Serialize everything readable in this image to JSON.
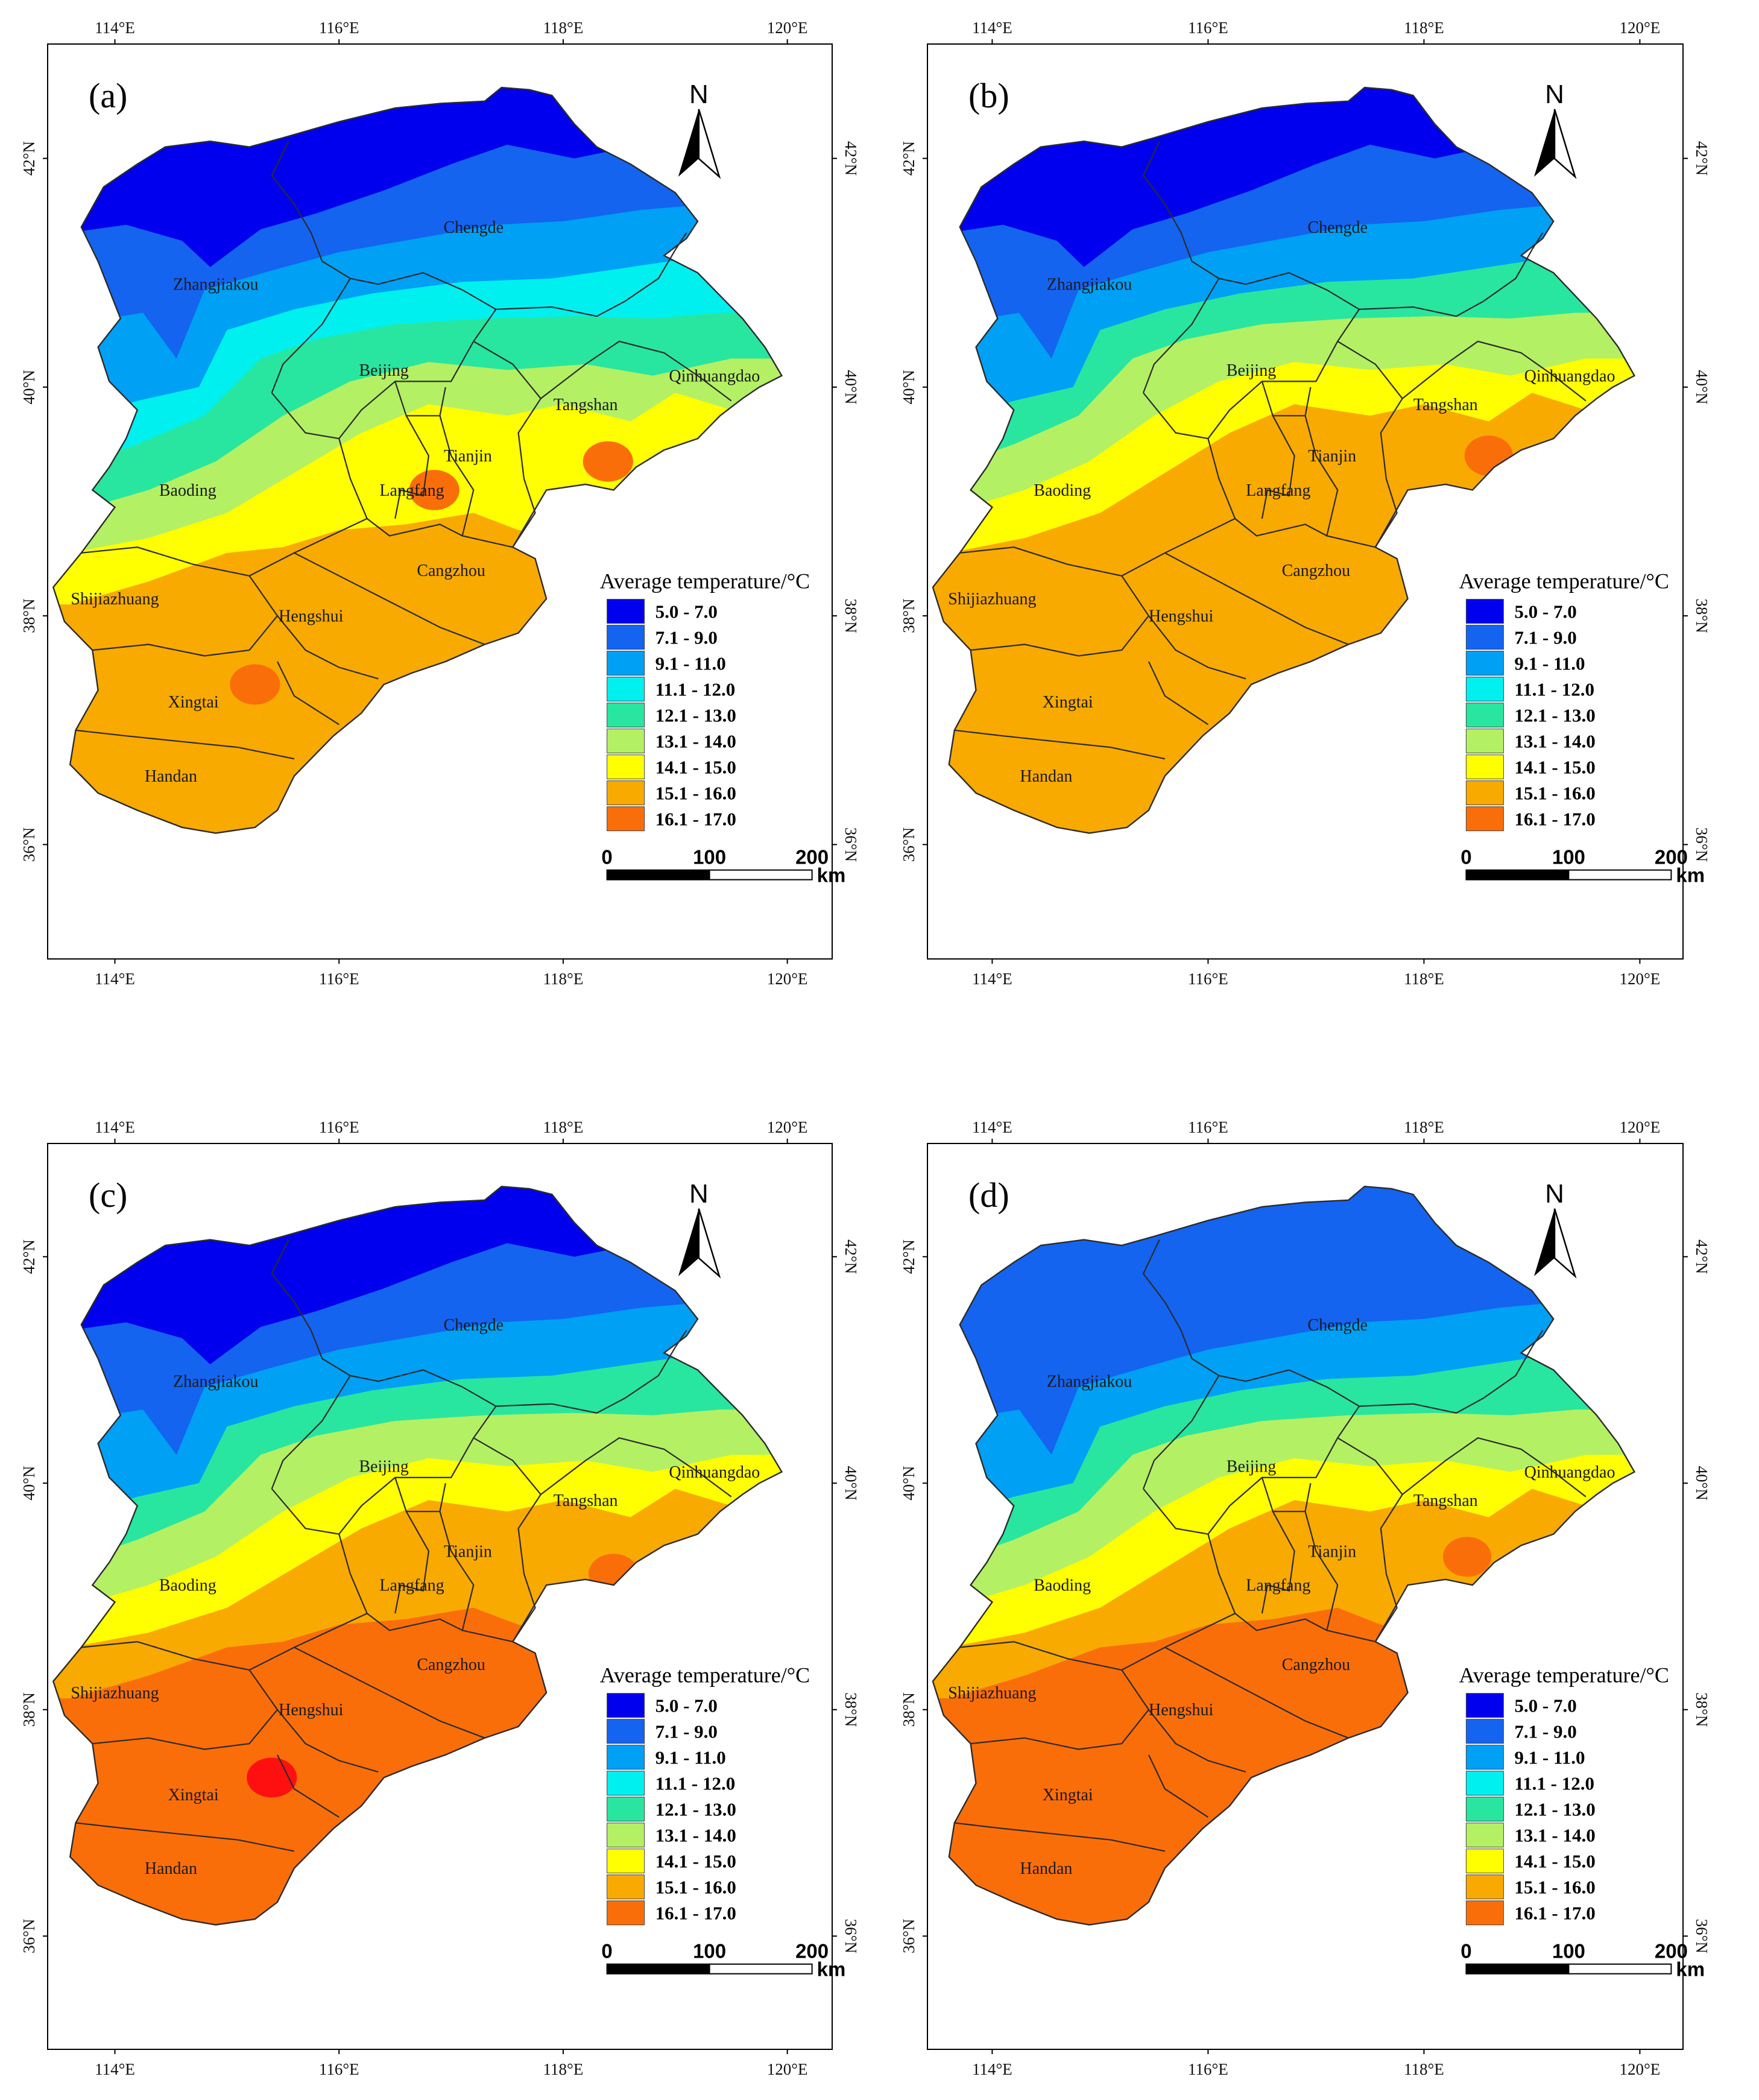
{
  "figure": {
    "lon_ticks": [
      "114°E",
      "116°E",
      "118°E",
      "120°E"
    ],
    "lat_ticks": [
      "36°N",
      "38°N",
      "40°N",
      "42°N"
    ],
    "legend": {
      "title": "Average temperature/°C",
      "classes": [
        {
          "label": "5.0 - 7.0",
          "color": "#0000ee"
        },
        {
          "label": "7.1 - 9.0",
          "color": "#1464f0"
        },
        {
          "label": "9.1 - 11.0",
          "color": "#00a0f5"
        },
        {
          "label": "11.1 - 12.0",
          "color": "#00f0f0"
        },
        {
          "label": "12.1 - 13.0",
          "color": "#28e6a0"
        },
        {
          "label": "13.1 - 14.0",
          "color": "#b4f064"
        },
        {
          "label": "14.1 - 15.0",
          "color": "#ffff00"
        },
        {
          "label": "15.1 - 16.0",
          "color": "#f8aa00"
        },
        {
          "label": "16.1 - 17.0",
          "color": "#fa6e0a"
        }
      ],
      "extra_color": "#ff1010"
    },
    "north_label": "N",
    "scale_bar": {
      "labels": [
        "0",
        "100",
        "200"
      ],
      "unit": "km"
    },
    "cities": [
      "Zhangjiakou",
      "Chengde",
      "Beijing",
      "Qinhuangdao",
      "Tangshan",
      "Tianjin",
      "Langfang",
      "Baoding",
      "Shijiazhuang",
      "Cangzhou",
      "Hengshui",
      "Xingtai",
      "Handan"
    ],
    "panels": [
      {
        "label": "(a)",
        "bands": [
          0,
          1,
          2,
          3,
          4,
          5,
          6,
          7
        ],
        "hotspots": [
          {
            "lon": 118.4,
            "lat": 39.35,
            "cls": 8
          },
          {
            "lon": 115.25,
            "lat": 37.4,
            "cls": 8
          },
          {
            "lon": 116.85,
            "lat": 39.1,
            "cls": 8
          }
        ]
      },
      {
        "label": "(b)",
        "bands": [
          0,
          1,
          2,
          4,
          5,
          6,
          7,
          7
        ],
        "hotspots": [
          {
            "lon": 118.6,
            "lat": 39.4,
            "cls": 8
          }
        ]
      },
      {
        "label": "(c)",
        "bands": [
          0,
          1,
          2,
          4,
          5,
          6,
          7,
          8
        ],
        "hotspots": [
          {
            "lon": 118.45,
            "lat": 39.2,
            "cls": 8
          },
          {
            "lon": 115.4,
            "lat": 37.4,
            "cls": 9
          }
        ]
      },
      {
        "label": "(d)",
        "bands": [
          1,
          1,
          2,
          4,
          5,
          6,
          7,
          8
        ],
        "hotspots": [
          {
            "lon": 118.4,
            "lat": 39.35,
            "cls": 8
          }
        ]
      }
    ]
  }
}
